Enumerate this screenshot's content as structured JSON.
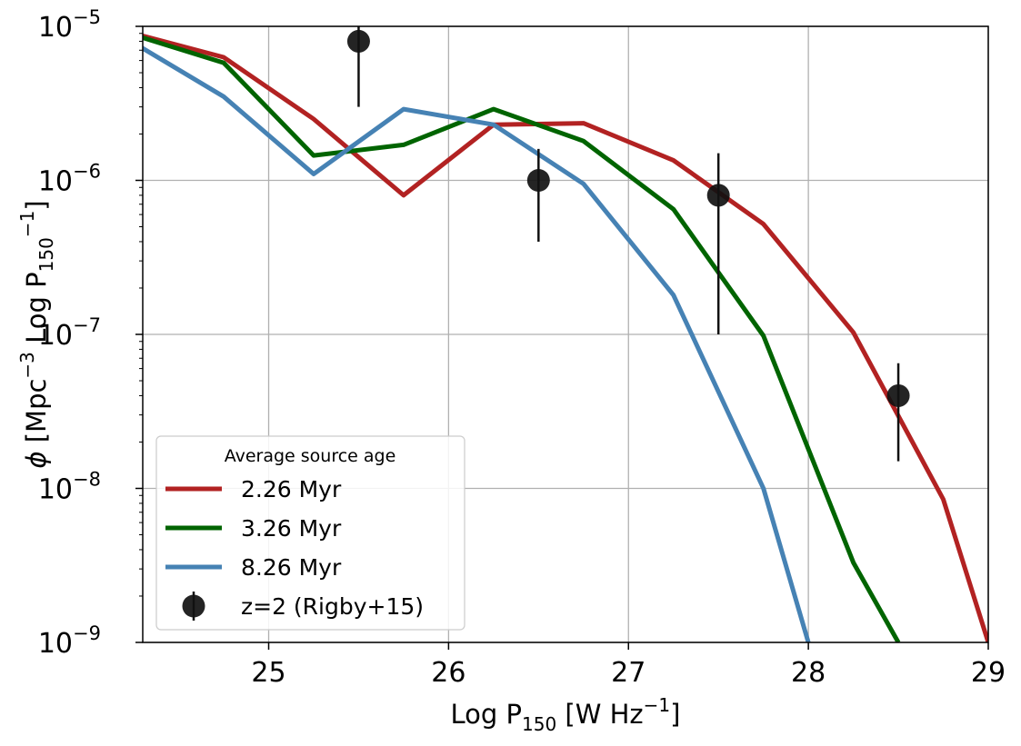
{
  "chart_data": {
    "type": "line",
    "xlabel": {
      "main": "Log P",
      "sub": "150",
      "unit": " [W Hz",
      "sup": "−1",
      "close": "]"
    },
    "ylabel": {
      "phi": "ϕ",
      "a": " [Mpc",
      "sup1": "−3",
      "b": " Log P",
      "sub": "150",
      "sup2": "−1",
      "close": "]"
    },
    "xlim": [
      24.3,
      29.0
    ],
    "ylim": [
      1e-09,
      1e-05
    ],
    "yscale": "log",
    "grid": true,
    "xticks": [
      {
        "value": 25,
        "label": "25"
      },
      {
        "value": 26,
        "label": "26"
      },
      {
        "value": 27,
        "label": "27"
      },
      {
        "value": 28,
        "label": "28"
      },
      {
        "value": 29,
        "label": "29"
      }
    ],
    "yticks": [
      {
        "exp": -5,
        "label": "10",
        "sup": "−5"
      },
      {
        "exp": -6,
        "label": "10",
        "sup": "−6"
      },
      {
        "exp": -7,
        "label": "10",
        "sup": "−7"
      },
      {
        "exp": -8,
        "label": "10",
        "sup": "−8"
      },
      {
        "exp": -9,
        "label": "10",
        "sup": "−9"
      }
    ],
    "series": [
      {
        "name": "2.26 Myr",
        "color": "#b22222",
        "x": [
          24.25,
          24.75,
          25.25,
          25.75,
          26.25,
          26.75,
          27.25,
          27.75,
          28.25,
          28.75,
          29.0
        ],
        "y": [
          9e-06,
          6.3e-06,
          2.5e-06,
          8e-07,
          2.3e-06,
          2.35e-06,
          1.35e-06,
          5.2e-07,
          1.03e-07,
          8.5e-09,
          1e-09
        ]
      },
      {
        "name": "3.26 Myr",
        "color": "#006400",
        "x": [
          24.25,
          24.75,
          25.25,
          25.75,
          26.25,
          26.75,
          27.25,
          27.75,
          28.25,
          28.5
        ],
        "y": [
          8.8e-06,
          5.8e-06,
          1.45e-06,
          1.7e-06,
          2.9e-06,
          1.8e-06,
          6.5e-07,
          9.8e-08,
          3.3e-09,
          1e-09
        ]
      },
      {
        "name": "8.26 Myr",
        "color": "#4682b4",
        "x": [
          24.25,
          24.75,
          25.25,
          25.75,
          26.25,
          26.75,
          27.25,
          27.75,
          28.0
        ],
        "y": [
          7.8e-06,
          3.5e-06,
          1.1e-06,
          2.9e-06,
          2.3e-06,
          9.5e-07,
          1.8e-07,
          1e-08,
          1e-09
        ]
      }
    ],
    "points": {
      "name": "z=2 (Rigby+15)",
      "color": "#111111",
      "data": [
        {
          "x": 25.5,
          "y": 8e-06,
          "ylo": 3e-06,
          "yhi": 1e-05
        },
        {
          "x": 26.5,
          "y": 1e-06,
          "ylo": 4e-07,
          "yhi": 1.6e-06
        },
        {
          "x": 27.5,
          "y": 8e-07,
          "ylo": 1e-07,
          "yhi": 1.5e-06
        },
        {
          "x": 28.5,
          "y": 4e-08,
          "ylo": 1.5e-08,
          "yhi": 6.5e-08
        }
      ]
    },
    "legend": {
      "title": "Average source age",
      "placement": "lower-left",
      "entries": [
        "2.26 Myr",
        "3.26 Myr",
        "8.26 Myr",
        "z=2 (Rigby+15)"
      ]
    }
  }
}
